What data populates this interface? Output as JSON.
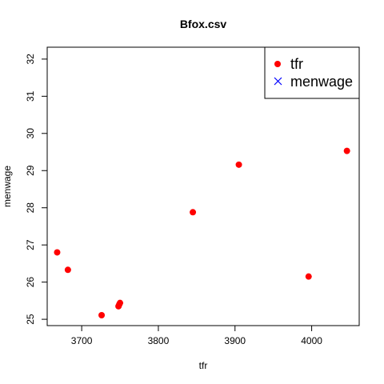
{
  "chart_data": {
    "type": "scatter",
    "title": "Bfox.csv",
    "xlabel": "tfr",
    "ylabel": "menwage",
    "xlim": [
      3655,
      4062
    ],
    "ylim": [
      24.83,
      32.32
    ],
    "xticks": [
      3700,
      3800,
      3900,
      4000
    ],
    "yticks": [
      25,
      26,
      27,
      28,
      29,
      30,
      31,
      32
    ],
    "grid": false,
    "legend_position": "top-right",
    "series": [
      {
        "name": "tfr",
        "marker": "circle",
        "color": "#ff0000",
        "points": [
          {
            "x": 3668,
            "y": 26.8
          },
          {
            "x": 3682,
            "y": 26.33
          },
          {
            "x": 3726,
            "y": 25.11
          },
          {
            "x": 3748,
            "y": 25.35
          },
          {
            "x": 3749,
            "y": 25.4
          },
          {
            "x": 3750,
            "y": 25.44
          },
          {
            "x": 3845,
            "y": 27.88
          },
          {
            "x": 3905,
            "y": 29.16
          },
          {
            "x": 3996,
            "y": 26.15
          },
          {
            "x": 4046,
            "y": 29.53
          }
        ]
      },
      {
        "name": "menwage",
        "marker": "x",
        "color": "#0000ff",
        "points": []
      }
    ]
  }
}
